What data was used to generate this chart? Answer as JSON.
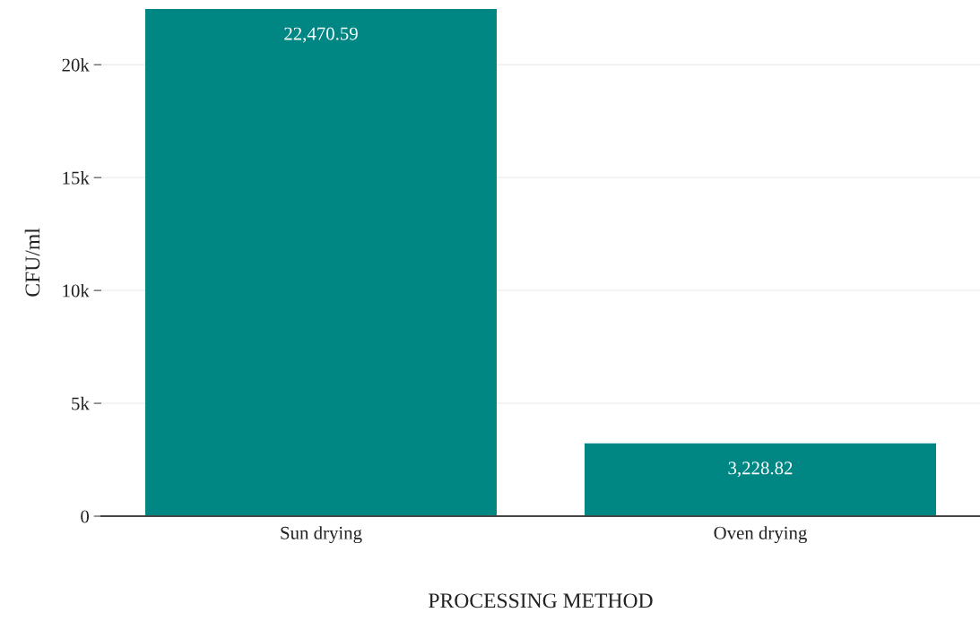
{
  "chart_data": {
    "type": "bar",
    "xlabel": "PROCESSING METHOD",
    "ylabel": "CFU/ml",
    "categories": [
      "Sun drying",
      "Oven drying"
    ],
    "values": [
      22470.59,
      3228.82
    ],
    "value_labels": [
      "22,470.59",
      "3,228.82"
    ],
    "color": "#008784",
    "ylim": [
      0,
      22470.59
    ],
    "yticks": [
      {
        "value": 0,
        "label": "0"
      },
      {
        "value": 5000,
        "label": "5k"
      },
      {
        "value": 10000,
        "label": "10k"
      },
      {
        "value": 15000,
        "label": "15k"
      },
      {
        "value": 20000,
        "label": "20k"
      }
    ],
    "grid": "y"
  }
}
